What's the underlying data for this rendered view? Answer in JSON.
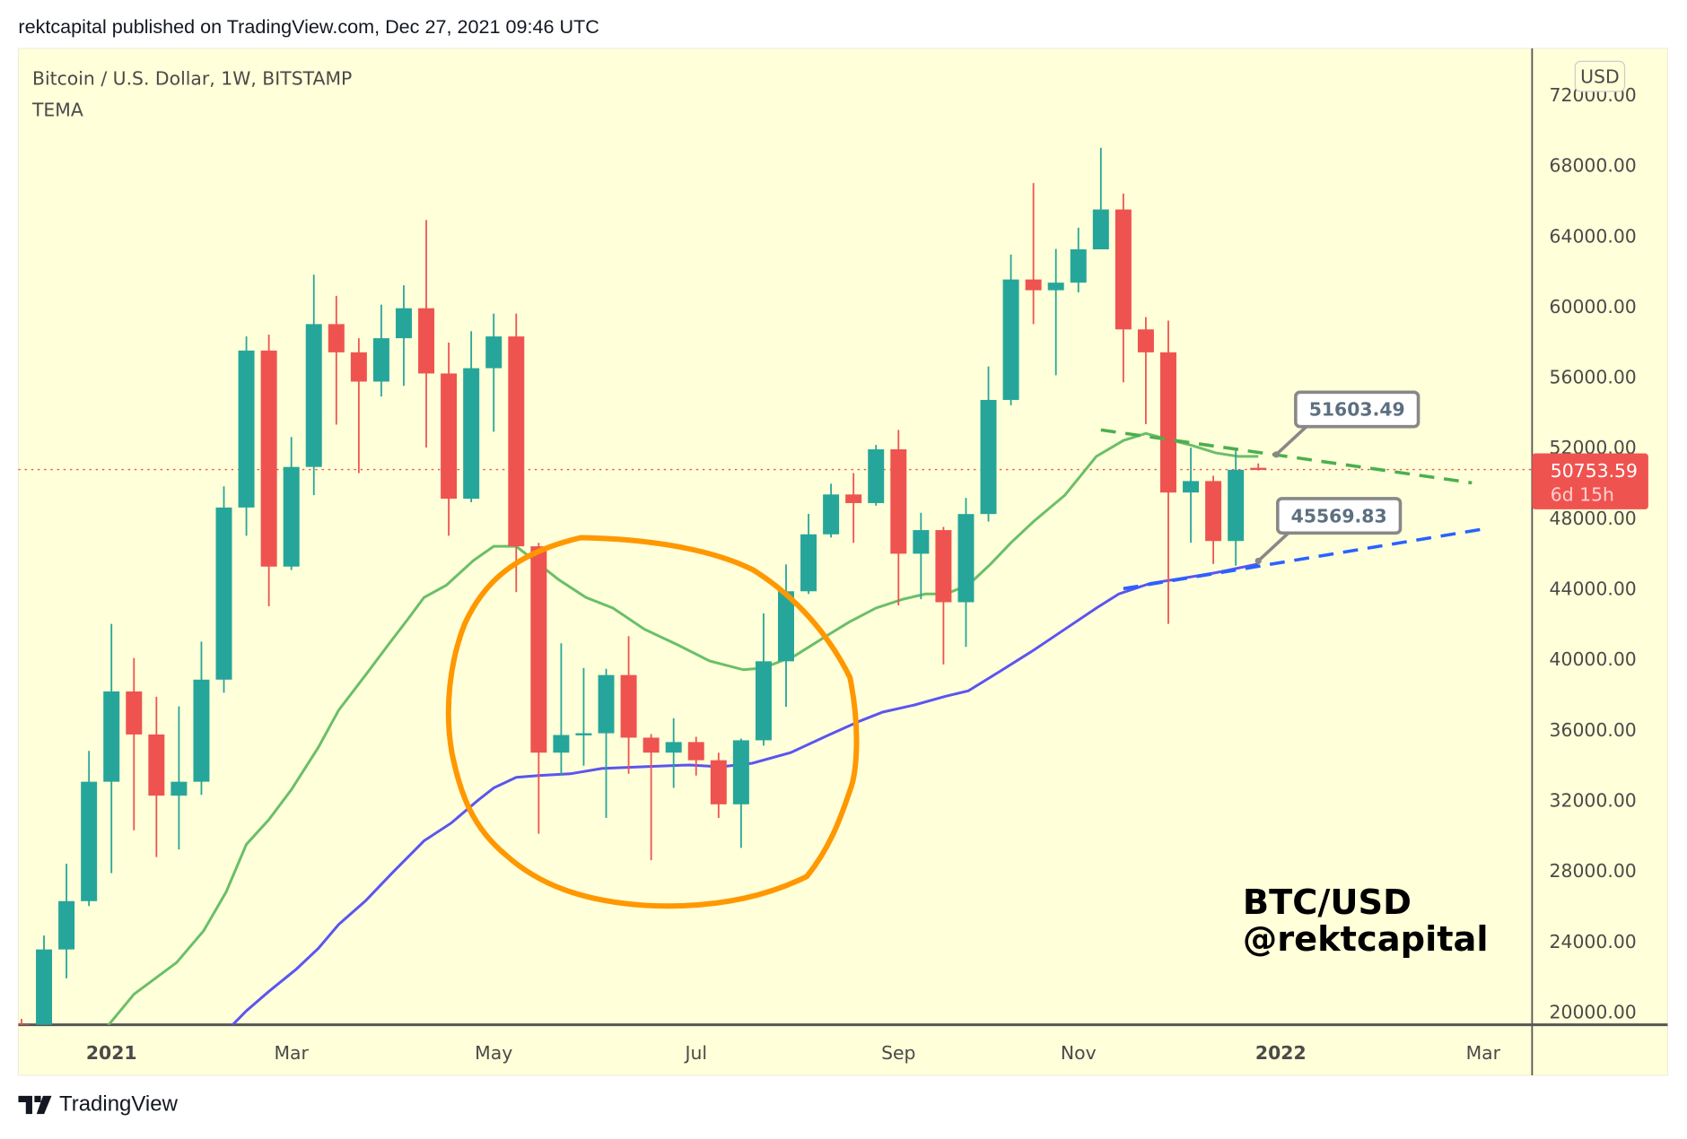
{
  "header": {
    "published": "rektcapital published on TradingView.com, Dec 27, 2021 09:46 UTC"
  },
  "legend": {
    "symbol": "Bitcoin / U.S. Dollar, 1W, BITSTAMP",
    "indicator": "TEMA"
  },
  "currency_button": "USD",
  "watermark": {
    "line1": "BTC/USD",
    "line2": "@rektcapital"
  },
  "footer": {
    "brand": "TradingView"
  },
  "colors": {
    "up": "#26a69a",
    "down": "#ef5350",
    "tema_fast": "#6abf69",
    "tema_slow": "#5b55f0",
    "annotation": "#ff9800",
    "background": "#ffffd9"
  },
  "chart_data": {
    "type": "candlestick",
    "title": "Bitcoin / U.S. Dollar, 1W, BITSTAMP",
    "timeframe": "1W",
    "x_tick_labels": [
      {
        "label": "2021",
        "index": 4,
        "bold": true
      },
      {
        "label": "Mar",
        "index": 12
      },
      {
        "label": "May",
        "index": 21
      },
      {
        "label": "Jul",
        "index": 30
      },
      {
        "label": "Sep",
        "index": 39
      },
      {
        "label": "Nov",
        "index": 47
      },
      {
        "label": "2022",
        "index": 56,
        "bold": true
      },
      {
        "label": "Mar",
        "index": 65
      }
    ],
    "y_ticks": [
      "72000.00",
      "68000.00",
      "64000.00",
      "60000.00",
      "56000.00",
      "52000.00",
      "48000.00",
      "44000.00",
      "40000.00",
      "36000.00",
      "32000.00",
      "28000.00",
      "24000.00",
      "20000.00"
    ],
    "ylim": [
      20000,
      72000
    ],
    "ohlc_order": [
      "open",
      "high",
      "low",
      "close"
    ],
    "candles": [
      [
        19300,
        19600,
        19000,
        19200
      ],
      [
        19100,
        24330,
        18900,
        23540
      ],
      [
        23540,
        28400,
        21900,
        26280
      ],
      [
        26280,
        34800,
        26000,
        33050
      ],
      [
        33050,
        42000,
        27870,
        38170
      ],
      [
        38170,
        40060,
        30300,
        35730
      ],
      [
        35730,
        37870,
        28780,
        32260
      ],
      [
        32260,
        37320,
        29210,
        33050
      ],
      [
        33050,
        41000,
        32300,
        38840
      ],
      [
        38840,
        49800,
        38100,
        48600
      ],
      [
        48600,
        58300,
        47000,
        57500
      ],
      [
        57500,
        58400,
        43000,
        45250
      ],
      [
        45250,
        52600,
        45050,
        50900
      ],
      [
        50900,
        61800,
        49300,
        59000
      ],
      [
        59000,
        60600,
        53300,
        57400
      ],
      [
        57400,
        58200,
        50550,
        55740
      ],
      [
        55740,
        60100,
        54900,
        58200
      ],
      [
        58200,
        61200,
        55500,
        59900
      ],
      [
        59900,
        64900,
        52000,
        56200
      ],
      [
        56200,
        57950,
        47000,
        49100
      ],
      [
        49100,
        58600,
        48900,
        56500
      ],
      [
        56500,
        59600,
        52900,
        58300
      ],
      [
        58300,
        59600,
        43800,
        46400
      ],
      [
        46400,
        46600,
        30100,
        34700
      ],
      [
        34700,
        40900,
        33400,
        35700
      ],
      [
        35700,
        39500,
        33960,
        35800
      ],
      [
        35800,
        39450,
        31000,
        39100
      ],
      [
        39100,
        41300,
        33500,
        35550
      ],
      [
        35550,
        35750,
        28600,
        34700
      ],
      [
        34700,
        36650,
        32700,
        35300
      ],
      [
        35300,
        35600,
        33400,
        34270
      ],
      [
        34270,
        34700,
        31000,
        31770
      ],
      [
        31770,
        35500,
        29300,
        35400
      ],
      [
        35400,
        42600,
        35100,
        39880
      ],
      [
        39880,
        45370,
        37300,
        43850
      ],
      [
        43850,
        48240,
        43700,
        47080
      ],
      [
        47080,
        49950,
        46900,
        49340
      ],
      [
        49340,
        50550,
        46600,
        48850
      ],
      [
        48850,
        52150,
        48700,
        51900
      ],
      [
        51900,
        53000,
        43050,
        45980
      ],
      [
        45980,
        48300,
        43400,
        47320
      ],
      [
        47320,
        47500,
        39700,
        43230
      ],
      [
        43230,
        49150,
        40700,
        48230
      ],
      [
        48230,
        56600,
        47800,
        54700
      ],
      [
        54700,
        62940,
        54400,
        61530
      ],
      [
        61530,
        67000,
        59000,
        60920
      ],
      [
        60920,
        63260,
        56100,
        61350
      ],
      [
        61350,
        64470,
        60800,
        63240
      ],
      [
        63240,
        69000,
        63240,
        65500
      ],
      [
        65500,
        66400,
        55700,
        58700
      ],
      [
        58700,
        59400,
        53330,
        57400
      ],
      [
        57400,
        59200,
        42000,
        49450
      ],
      [
        49450,
        52000,
        46600,
        50100
      ],
      [
        50100,
        50400,
        45400,
        46700
      ],
      [
        46700,
        52000,
        45300,
        50740
      ],
      [
        50850,
        51100,
        50700,
        50753.59
      ]
    ],
    "series": [
      {
        "name": "TEMA fast",
        "color": "#6abf69",
        "points": [
          [
            3.8,
            19150
          ],
          [
            5,
            21000
          ],
          [
            6.9,
            22800
          ],
          [
            8.1,
            24600
          ],
          [
            9.1,
            26800
          ],
          [
            10,
            29500
          ],
          [
            11,
            30900
          ],
          [
            12,
            32600
          ],
          [
            13.2,
            35000
          ],
          [
            14.1,
            37100
          ],
          [
            15.3,
            39100
          ],
          [
            16.3,
            40800
          ],
          [
            17.2,
            42300
          ],
          [
            17.9,
            43500
          ],
          [
            18.9,
            44200
          ],
          [
            20.1,
            45600
          ],
          [
            21,
            46400
          ],
          [
            22,
            46400
          ],
          [
            23,
            45400
          ],
          [
            23.9,
            44500
          ],
          [
            25.1,
            43500
          ],
          [
            26.3,
            42900
          ],
          [
            27.7,
            41700
          ],
          [
            29.2,
            40800
          ],
          [
            30.6,
            39900
          ],
          [
            32.1,
            39400
          ],
          [
            33,
            39500
          ],
          [
            34.4,
            40200
          ],
          [
            35.9,
            41400
          ],
          [
            36.8,
            42100
          ],
          [
            38,
            42900
          ],
          [
            39.2,
            43400
          ],
          [
            40.2,
            43700
          ],
          [
            41.1,
            43700
          ],
          [
            42.1,
            44200
          ],
          [
            43.1,
            45400
          ],
          [
            44,
            46600
          ],
          [
            45,
            47800
          ],
          [
            46.4,
            49300
          ],
          [
            47.8,
            51500
          ],
          [
            49,
            52400
          ],
          [
            50,
            52800
          ],
          [
            51.2,
            52400
          ],
          [
            52.1,
            52100
          ],
          [
            53.1,
            51700
          ],
          [
            54.1,
            51500
          ],
          [
            55,
            51500
          ]
        ]
      },
      {
        "name": "TEMA slow",
        "color": "#5b55f0",
        "points": [
          [
            9.3,
            19150
          ],
          [
            10,
            20060
          ],
          [
            11,
            21160
          ],
          [
            12.2,
            22400
          ],
          [
            13.2,
            23600
          ],
          [
            14.1,
            24950
          ],
          [
            15.3,
            26300
          ],
          [
            16.5,
            27900
          ],
          [
            17.9,
            29700
          ],
          [
            19.1,
            30700
          ],
          [
            20.3,
            32000
          ],
          [
            21,
            32700
          ],
          [
            22,
            33300
          ],
          [
            23,
            33400
          ],
          [
            24.4,
            33500
          ],
          [
            25.8,
            33800
          ],
          [
            27.7,
            33900
          ],
          [
            29.7,
            34000
          ],
          [
            31.1,
            33900
          ],
          [
            32.5,
            34100
          ],
          [
            34.2,
            34700
          ],
          [
            35.9,
            35700
          ],
          [
            37.3,
            36500
          ],
          [
            38.3,
            37000
          ],
          [
            39.7,
            37400
          ],
          [
            41.1,
            37900
          ],
          [
            42.1,
            38200
          ],
          [
            43.5,
            39300
          ],
          [
            45,
            40500
          ],
          [
            46.4,
            41700
          ],
          [
            47.8,
            42900
          ],
          [
            48.8,
            43700
          ],
          [
            50.2,
            44300
          ],
          [
            51.7,
            44600
          ],
          [
            53.1,
            44900
          ],
          [
            55,
            45400
          ]
        ]
      }
    ],
    "trendlines": [
      {
        "name": "resistance",
        "color": "#4caf50",
        "style": "dashed",
        "from": [
          48,
          53000
        ],
        "to": [
          64.5,
          50000
        ]
      },
      {
        "name": "support",
        "color": "#2962ff",
        "style": "dashed",
        "from": [
          49,
          44000
        ],
        "to": [
          65.1,
          47400
        ]
      }
    ],
    "callouts": [
      {
        "label": "51603.49",
        "anchor": [
          55.8,
          51603.49
        ]
      },
      {
        "label": "45569.83",
        "anchor": [
          55,
          45569.83
        ]
      }
    ],
    "last_price": {
      "value": "50753.59",
      "countdown": "6d 15h",
      "price": 50753.59
    }
  }
}
